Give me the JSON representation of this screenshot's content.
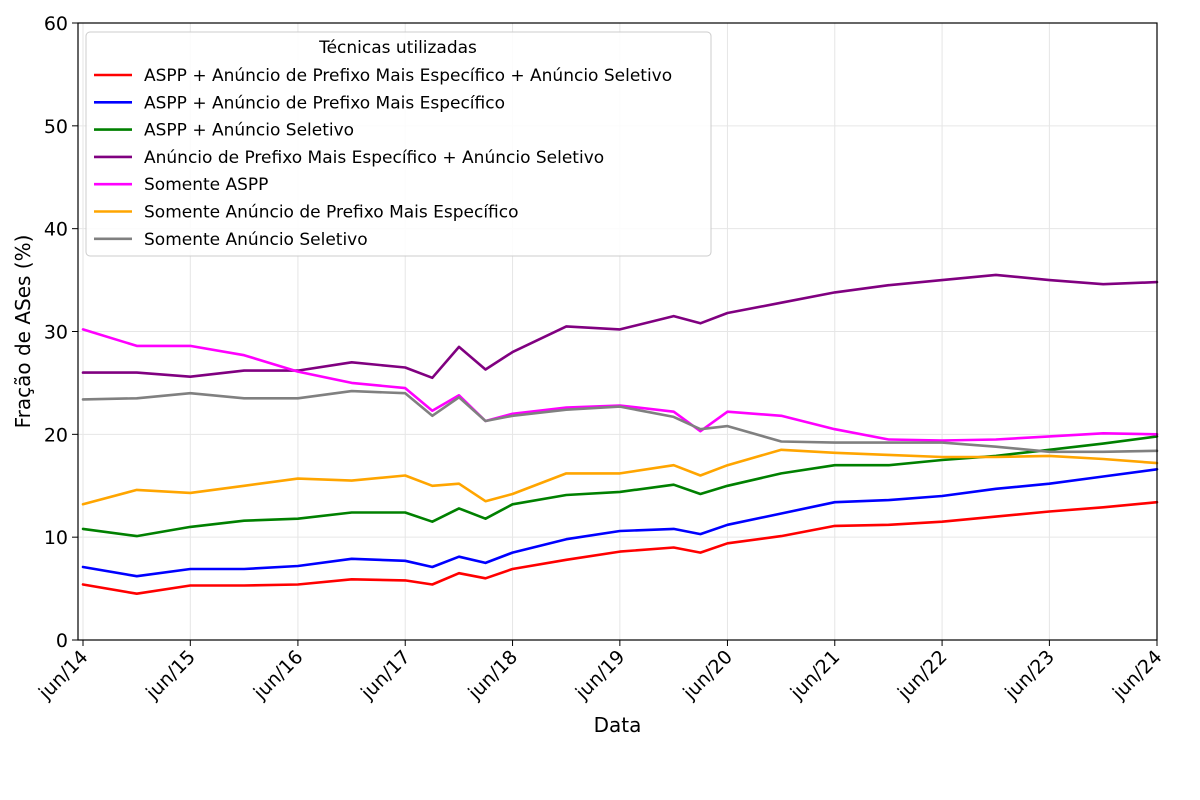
{
  "chart_data": {
    "type": "line",
    "title": "",
    "xlabel": "Data",
    "ylabel": "Fração de ASes (%)",
    "ylim": [
      0,
      60
    ],
    "yticks": [
      0,
      10,
      20,
      30,
      40,
      50,
      60
    ],
    "xlim": [
      "2014-05-15",
      "2024-06-01"
    ],
    "xticks": [
      {
        "date": "2014-06-01",
        "label": "jun/14"
      },
      {
        "date": "2015-06-01",
        "label": "jun/15"
      },
      {
        "date": "2016-06-01",
        "label": "jun/16"
      },
      {
        "date": "2017-06-01",
        "label": "jun/17"
      },
      {
        "date": "2018-06-01",
        "label": "jun/18"
      },
      {
        "date": "2019-06-01",
        "label": "jun/19"
      },
      {
        "date": "2020-06-01",
        "label": "jun/20"
      },
      {
        "date": "2021-06-01",
        "label": "jun/21"
      },
      {
        "date": "2022-06-01",
        "label": "jun/22"
      },
      {
        "date": "2023-06-01",
        "label": "jun/23"
      },
      {
        "date": "2024-06-01",
        "label": "jun/24"
      }
    ],
    "grid": true,
    "legend": {
      "title": "Técnicas utilizadas",
      "position": "top-left"
    },
    "series": [
      {
        "name": "ASPP + Anúncio de Prefixo Mais Específico + Anúncio Seletivo",
        "color": "#ff0000",
        "points": [
          [
            "2014-06-01",
            5.4
          ],
          [
            "2014-12-01",
            4.5
          ],
          [
            "2015-06-01",
            5.3
          ],
          [
            "2015-12-01",
            5.3
          ],
          [
            "2016-06-01",
            5.4
          ],
          [
            "2016-12-01",
            5.9
          ],
          [
            "2017-06-01",
            5.8
          ],
          [
            "2017-09-01",
            5.4
          ],
          [
            "2017-12-01",
            6.5
          ],
          [
            "2018-03-01",
            6.0
          ],
          [
            "2018-06-01",
            6.9
          ],
          [
            "2018-12-01",
            7.8
          ],
          [
            "2019-06-01",
            8.6
          ],
          [
            "2019-12-01",
            9.0
          ],
          [
            "2020-03-01",
            8.5
          ],
          [
            "2020-06-01",
            9.4
          ],
          [
            "2020-12-01",
            10.1
          ],
          [
            "2021-06-01",
            11.1
          ],
          [
            "2021-12-01",
            11.2
          ],
          [
            "2022-06-01",
            11.5
          ],
          [
            "2022-12-01",
            12.0
          ],
          [
            "2023-06-01",
            12.5
          ],
          [
            "2023-12-01",
            12.9
          ],
          [
            "2024-06-01",
            13.4
          ]
        ]
      },
      {
        "name": "ASPP + Anúncio de Prefixo Mais Específico",
        "color": "#0000ff",
        "points": [
          [
            "2014-06-01",
            7.1
          ],
          [
            "2014-12-01",
            6.2
          ],
          [
            "2015-06-01",
            6.9
          ],
          [
            "2015-12-01",
            6.9
          ],
          [
            "2016-06-01",
            7.2
          ],
          [
            "2016-12-01",
            7.9
          ],
          [
            "2017-06-01",
            7.7
          ],
          [
            "2017-09-01",
            7.1
          ],
          [
            "2017-12-01",
            8.1
          ],
          [
            "2018-03-01",
            7.5
          ],
          [
            "2018-06-01",
            8.5
          ],
          [
            "2018-12-01",
            9.8
          ],
          [
            "2019-06-01",
            10.6
          ],
          [
            "2019-12-01",
            10.8
          ],
          [
            "2020-03-01",
            10.3
          ],
          [
            "2020-06-01",
            11.2
          ],
          [
            "2020-12-01",
            12.3
          ],
          [
            "2021-06-01",
            13.4
          ],
          [
            "2021-12-01",
            13.6
          ],
          [
            "2022-06-01",
            14.0
          ],
          [
            "2022-12-01",
            14.7
          ],
          [
            "2023-06-01",
            15.2
          ],
          [
            "2023-12-01",
            15.9
          ],
          [
            "2024-06-01",
            16.6
          ]
        ]
      },
      {
        "name": "ASPP + Anúncio Seletivo",
        "color": "#008000",
        "points": [
          [
            "2014-06-01",
            10.8
          ],
          [
            "2014-12-01",
            10.1
          ],
          [
            "2015-06-01",
            11.0
          ],
          [
            "2015-12-01",
            11.6
          ],
          [
            "2016-06-01",
            11.8
          ],
          [
            "2016-12-01",
            12.4
          ],
          [
            "2017-06-01",
            12.4
          ],
          [
            "2017-09-01",
            11.5
          ],
          [
            "2017-12-01",
            12.8
          ],
          [
            "2018-03-01",
            11.8
          ],
          [
            "2018-06-01",
            13.2
          ],
          [
            "2018-12-01",
            14.1
          ],
          [
            "2019-06-01",
            14.4
          ],
          [
            "2019-12-01",
            15.1
          ],
          [
            "2020-03-01",
            14.2
          ],
          [
            "2020-06-01",
            15.0
          ],
          [
            "2020-12-01",
            16.2
          ],
          [
            "2021-06-01",
            17.0
          ],
          [
            "2021-12-01",
            17.0
          ],
          [
            "2022-06-01",
            17.5
          ],
          [
            "2022-12-01",
            17.9
          ],
          [
            "2023-06-01",
            18.5
          ],
          [
            "2023-12-01",
            19.1
          ],
          [
            "2024-06-01",
            19.8
          ]
        ]
      },
      {
        "name": "Anúncio de Prefixo Mais Específico + Anúncio Seletivo",
        "color": "#800080",
        "points": [
          [
            "2014-06-01",
            26.0
          ],
          [
            "2014-12-01",
            26.0
          ],
          [
            "2015-06-01",
            25.6
          ],
          [
            "2015-12-01",
            26.2
          ],
          [
            "2016-06-01",
            26.2
          ],
          [
            "2016-12-01",
            27.0
          ],
          [
            "2017-06-01",
            26.5
          ],
          [
            "2017-09-01",
            25.5
          ],
          [
            "2017-12-01",
            28.5
          ],
          [
            "2018-03-01",
            26.3
          ],
          [
            "2018-06-01",
            28.0
          ],
          [
            "2018-12-01",
            30.5
          ],
          [
            "2019-06-01",
            30.2
          ],
          [
            "2019-12-01",
            31.5
          ],
          [
            "2020-03-01",
            30.8
          ],
          [
            "2020-06-01",
            31.8
          ],
          [
            "2020-12-01",
            32.8
          ],
          [
            "2021-06-01",
            33.8
          ],
          [
            "2021-12-01",
            34.5
          ],
          [
            "2022-06-01",
            35.0
          ],
          [
            "2022-12-01",
            35.5
          ],
          [
            "2023-06-01",
            35.0
          ],
          [
            "2023-12-01",
            34.6
          ],
          [
            "2024-06-01",
            34.8
          ]
        ]
      },
      {
        "name": "Somente ASPP",
        "color": "#ff00ff",
        "points": [
          [
            "2014-06-01",
            30.2
          ],
          [
            "2014-12-01",
            28.6
          ],
          [
            "2015-06-01",
            28.6
          ],
          [
            "2015-12-01",
            27.7
          ],
          [
            "2016-06-01",
            26.1
          ],
          [
            "2016-12-01",
            25.0
          ],
          [
            "2017-06-01",
            24.5
          ],
          [
            "2017-09-01",
            22.3
          ],
          [
            "2017-12-01",
            23.8
          ],
          [
            "2018-03-01",
            21.3
          ],
          [
            "2018-06-01",
            22.0
          ],
          [
            "2018-12-01",
            22.6
          ],
          [
            "2019-06-01",
            22.8
          ],
          [
            "2019-12-01",
            22.2
          ],
          [
            "2020-03-01",
            20.3
          ],
          [
            "2020-06-01",
            22.2
          ],
          [
            "2020-12-01",
            21.8
          ],
          [
            "2021-06-01",
            20.5
          ],
          [
            "2021-12-01",
            19.5
          ],
          [
            "2022-06-01",
            19.4
          ],
          [
            "2022-12-01",
            19.5
          ],
          [
            "2023-06-01",
            19.8
          ],
          [
            "2023-12-01",
            20.1
          ],
          [
            "2024-06-01",
            20.0
          ]
        ]
      },
      {
        "name": "Somente Anúncio de Prefixo Mais Específico",
        "color": "#ffa500",
        "points": [
          [
            "2014-06-01",
            13.2
          ],
          [
            "2014-12-01",
            14.6
          ],
          [
            "2015-06-01",
            14.3
          ],
          [
            "2015-12-01",
            15.0
          ],
          [
            "2016-06-01",
            15.7
          ],
          [
            "2016-12-01",
            15.5
          ],
          [
            "2017-06-01",
            16.0
          ],
          [
            "2017-09-01",
            15.0
          ],
          [
            "2017-12-01",
            15.2
          ],
          [
            "2018-03-01",
            13.5
          ],
          [
            "2018-06-01",
            14.2
          ],
          [
            "2018-12-01",
            16.2
          ],
          [
            "2019-06-01",
            16.2
          ],
          [
            "2019-12-01",
            17.0
          ],
          [
            "2020-03-01",
            16.0
          ],
          [
            "2020-06-01",
            17.0
          ],
          [
            "2020-12-01",
            18.5
          ],
          [
            "2021-06-01",
            18.2
          ],
          [
            "2021-12-01",
            18.0
          ],
          [
            "2022-06-01",
            17.8
          ],
          [
            "2022-12-01",
            17.8
          ],
          [
            "2023-06-01",
            17.9
          ],
          [
            "2023-12-01",
            17.6
          ],
          [
            "2024-06-01",
            17.2
          ]
        ]
      },
      {
        "name": "Somente Anúncio Seletivo",
        "color": "#808080",
        "points": [
          [
            "2014-06-01",
            23.4
          ],
          [
            "2014-12-01",
            23.5
          ],
          [
            "2015-06-01",
            24.0
          ],
          [
            "2015-12-01",
            23.5
          ],
          [
            "2016-06-01",
            23.5
          ],
          [
            "2016-12-01",
            24.2
          ],
          [
            "2017-06-01",
            24.0
          ],
          [
            "2017-09-01",
            21.8
          ],
          [
            "2017-12-01",
            23.6
          ],
          [
            "2018-03-01",
            21.3
          ],
          [
            "2018-06-01",
            21.8
          ],
          [
            "2018-12-01",
            22.4
          ],
          [
            "2019-06-01",
            22.7
          ],
          [
            "2019-12-01",
            21.7
          ],
          [
            "2020-03-01",
            20.5
          ],
          [
            "2020-06-01",
            20.8
          ],
          [
            "2020-12-01",
            19.3
          ],
          [
            "2021-06-01",
            19.2
          ],
          [
            "2021-12-01",
            19.2
          ],
          [
            "2022-06-01",
            19.2
          ],
          [
            "2022-12-01",
            18.8
          ],
          [
            "2023-06-01",
            18.3
          ],
          [
            "2023-12-01",
            18.3
          ],
          [
            "2024-06-01",
            18.4
          ]
        ]
      }
    ]
  }
}
